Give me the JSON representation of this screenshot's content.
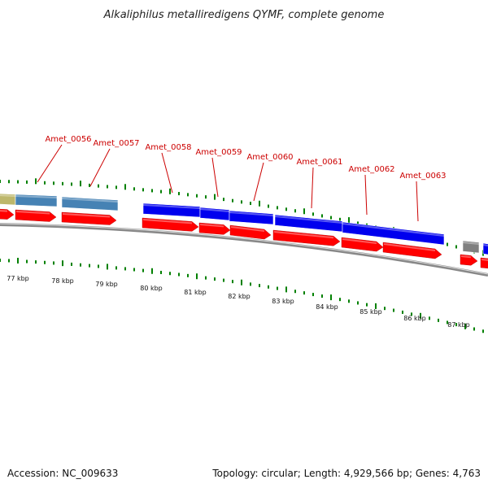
{
  "title": "Alkaliphilus metalliredigens QYMF, complete genome",
  "footer": {
    "accession": "Accession: NC_009633",
    "summary": "Topology: circular; Length: 4,929,566 bp; Genes: 4,763"
  },
  "colors": {
    "cds": "#ff0000",
    "highlighted_gene": "#0000ee",
    "gene_steel": "#4682b4",
    "gene_khaki": "#bdb76b",
    "gene_gray": "#808080",
    "backbone": "#888888",
    "tick": "#008000",
    "label": "#cc0000"
  },
  "ruler": {
    "unit": "kbp",
    "labels": [
      "77 kbp",
      "78 kbp",
      "79 kbp",
      "80 kbp",
      "81 kbp",
      "82 kbp",
      "83 kbp",
      "84 kbp",
      "85 kbp",
      "86 kbp",
      "87 kbp"
    ]
  },
  "gene_labels": [
    "Amet_0056",
    "Amet_0057",
    "Amet_0058",
    "Amet_0059",
    "Amet_0060",
    "Amet_0061",
    "Amet_0062",
    "Amet_0063"
  ]
}
